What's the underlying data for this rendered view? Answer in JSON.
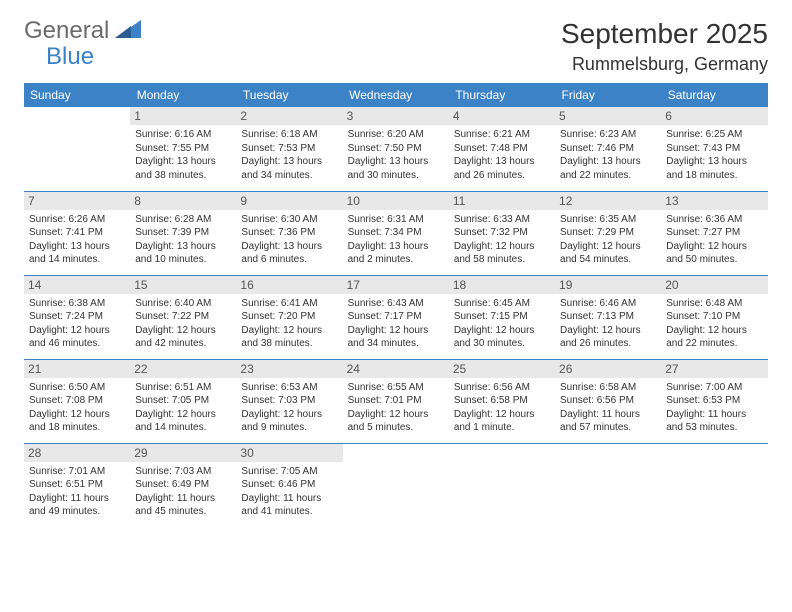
{
  "logo": {
    "line1": "General",
    "line2": "Blue"
  },
  "title": "September 2025",
  "location": "Rummelsburg, Germany",
  "colors": {
    "header_bg": "#3b82c7",
    "header_text": "#ffffff",
    "daynum_bg": "#e8e8e8",
    "daynum_text": "#555555",
    "text": "#333333",
    "logo_gray": "#6b6b6b",
    "logo_blue": "#3b82c7",
    "row_divider": "#3b82c7"
  },
  "weekdays": [
    "Sunday",
    "Monday",
    "Tuesday",
    "Wednesday",
    "Thursday",
    "Friday",
    "Saturday"
  ],
  "weeks": [
    [
      null,
      {
        "n": "1",
        "sr": "6:16 AM",
        "ss": "7:55 PM",
        "dl": "13 hours and 38 minutes."
      },
      {
        "n": "2",
        "sr": "6:18 AM",
        "ss": "7:53 PM",
        "dl": "13 hours and 34 minutes."
      },
      {
        "n": "3",
        "sr": "6:20 AM",
        "ss": "7:50 PM",
        "dl": "13 hours and 30 minutes."
      },
      {
        "n": "4",
        "sr": "6:21 AM",
        "ss": "7:48 PM",
        "dl": "13 hours and 26 minutes."
      },
      {
        "n": "5",
        "sr": "6:23 AM",
        "ss": "7:46 PM",
        "dl": "13 hours and 22 minutes."
      },
      {
        "n": "6",
        "sr": "6:25 AM",
        "ss": "7:43 PM",
        "dl": "13 hours and 18 minutes."
      }
    ],
    [
      {
        "n": "7",
        "sr": "6:26 AM",
        "ss": "7:41 PM",
        "dl": "13 hours and 14 minutes."
      },
      {
        "n": "8",
        "sr": "6:28 AM",
        "ss": "7:39 PM",
        "dl": "13 hours and 10 minutes."
      },
      {
        "n": "9",
        "sr": "6:30 AM",
        "ss": "7:36 PM",
        "dl": "13 hours and 6 minutes."
      },
      {
        "n": "10",
        "sr": "6:31 AM",
        "ss": "7:34 PM",
        "dl": "13 hours and 2 minutes."
      },
      {
        "n": "11",
        "sr": "6:33 AM",
        "ss": "7:32 PM",
        "dl": "12 hours and 58 minutes."
      },
      {
        "n": "12",
        "sr": "6:35 AM",
        "ss": "7:29 PM",
        "dl": "12 hours and 54 minutes."
      },
      {
        "n": "13",
        "sr": "6:36 AM",
        "ss": "7:27 PM",
        "dl": "12 hours and 50 minutes."
      }
    ],
    [
      {
        "n": "14",
        "sr": "6:38 AM",
        "ss": "7:24 PM",
        "dl": "12 hours and 46 minutes."
      },
      {
        "n": "15",
        "sr": "6:40 AM",
        "ss": "7:22 PM",
        "dl": "12 hours and 42 minutes."
      },
      {
        "n": "16",
        "sr": "6:41 AM",
        "ss": "7:20 PM",
        "dl": "12 hours and 38 minutes."
      },
      {
        "n": "17",
        "sr": "6:43 AM",
        "ss": "7:17 PM",
        "dl": "12 hours and 34 minutes."
      },
      {
        "n": "18",
        "sr": "6:45 AM",
        "ss": "7:15 PM",
        "dl": "12 hours and 30 minutes."
      },
      {
        "n": "19",
        "sr": "6:46 AM",
        "ss": "7:13 PM",
        "dl": "12 hours and 26 minutes."
      },
      {
        "n": "20",
        "sr": "6:48 AM",
        "ss": "7:10 PM",
        "dl": "12 hours and 22 minutes."
      }
    ],
    [
      {
        "n": "21",
        "sr": "6:50 AM",
        "ss": "7:08 PM",
        "dl": "12 hours and 18 minutes."
      },
      {
        "n": "22",
        "sr": "6:51 AM",
        "ss": "7:05 PM",
        "dl": "12 hours and 14 minutes."
      },
      {
        "n": "23",
        "sr": "6:53 AM",
        "ss": "7:03 PM",
        "dl": "12 hours and 9 minutes."
      },
      {
        "n": "24",
        "sr": "6:55 AM",
        "ss": "7:01 PM",
        "dl": "12 hours and 5 minutes."
      },
      {
        "n": "25",
        "sr": "6:56 AM",
        "ss": "6:58 PM",
        "dl": "12 hours and 1 minute."
      },
      {
        "n": "26",
        "sr": "6:58 AM",
        "ss": "6:56 PM",
        "dl": "11 hours and 57 minutes."
      },
      {
        "n": "27",
        "sr": "7:00 AM",
        "ss": "6:53 PM",
        "dl": "11 hours and 53 minutes."
      }
    ],
    [
      {
        "n": "28",
        "sr": "7:01 AM",
        "ss": "6:51 PM",
        "dl": "11 hours and 49 minutes."
      },
      {
        "n": "29",
        "sr": "7:03 AM",
        "ss": "6:49 PM",
        "dl": "11 hours and 45 minutes."
      },
      {
        "n": "30",
        "sr": "7:05 AM",
        "ss": "6:46 PM",
        "dl": "11 hours and 41 minutes."
      },
      null,
      null,
      null,
      null
    ]
  ],
  "labels": {
    "sunrise": "Sunrise:",
    "sunset": "Sunset:",
    "daylight": "Daylight:"
  }
}
